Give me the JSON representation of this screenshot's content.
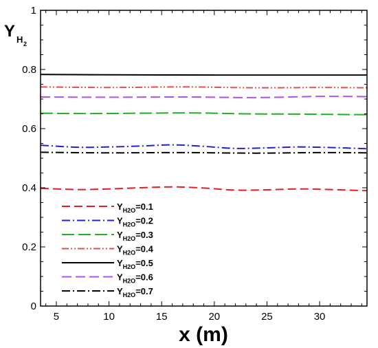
{
  "chart_data": {
    "type": "line",
    "xlabel": "x (m)",
    "ylabel": {
      "main": "Y",
      "sub": "H",
      "sub2": "2"
    },
    "xlim": [
      3.5,
      34.5
    ],
    "ylim": [
      0,
      1
    ],
    "xticks": [
      5,
      10,
      15,
      20,
      25,
      30
    ],
    "yticks": [
      0,
      0.2,
      0.4,
      0.6,
      0.8,
      1
    ],
    "ytick_labels": [
      "0",
      "0.2",
      "0.4",
      "0.6",
      "0.8",
      "1"
    ],
    "grid": false,
    "legend_position": "bottom-left",
    "series": [
      {
        "name": "YH2O=0.1",
        "label_main": "Y",
        "label_sub": "H2O",
        "label_rest": "=0.1",
        "color": "#e02020",
        "dash": "12,6",
        "x": [
          3.5,
          7,
          10,
          13,
          16,
          19,
          22,
          25,
          28,
          31,
          34.5
        ],
        "values": [
          0.398,
          0.394,
          0.396,
          0.4,
          0.403,
          0.399,
          0.392,
          0.393,
          0.396,
          0.394,
          0.39
        ]
      },
      {
        "name": "YH2O=0.2",
        "label_main": "Y",
        "label_sub": "H2O",
        "label_rest": "=0.2",
        "color": "#2020d0",
        "dash": "12,4,2,4",
        "x": [
          3.5,
          7,
          10,
          13,
          16,
          19,
          22,
          25,
          28,
          31,
          34.5
        ],
        "values": [
          0.544,
          0.537,
          0.538,
          0.541,
          0.545,
          0.54,
          0.533,
          0.535,
          0.538,
          0.536,
          0.532
        ]
      },
      {
        "name": "YH2O=0.3",
        "label_main": "Y",
        "label_sub": "H2O",
        "label_rest": "=0.3",
        "color": "#20b020",
        "dash": "18,6",
        "x": [
          3.5,
          8,
          13,
          18,
          23,
          28,
          34.5
        ],
        "values": [
          0.652,
          0.651,
          0.652,
          0.653,
          0.65,
          0.649,
          0.647
        ]
      },
      {
        "name": "YH2O=0.4",
        "label_main": "Y",
        "label_sub": "H2O",
        "label_rest": "=0.4",
        "color": "#e05050",
        "dash": "10,3,2,3,2,3",
        "x": [
          3.5,
          10,
          17,
          24,
          30,
          34.5
        ],
        "values": [
          0.741,
          0.739,
          0.741,
          0.738,
          0.739,
          0.738
        ]
      },
      {
        "name": "YH2O=0.5",
        "label_main": "Y",
        "label_sub": "H2O",
        "label_rest": "=0.5",
        "color": "#000000",
        "dash": "",
        "x": [
          3.5,
          10,
          20,
          28,
          34.5
        ],
        "values": [
          0.783,
          0.782,
          0.781,
          0.781,
          0.781
        ]
      },
      {
        "name": "YH2O=0.6",
        "label_main": "Y",
        "label_sub": "H2O",
        "label_rest": "=0.6",
        "color": "#b050f0",
        "dash": "14,6",
        "x": [
          3.5,
          10,
          17,
          24,
          30,
          34.5
        ],
        "values": [
          0.707,
          0.706,
          0.707,
          0.705,
          0.709,
          0.708
        ]
      },
      {
        "name": "YH2O=0.7",
        "label_main": "Y",
        "label_sub": "H2O",
        "label_rest": "=0.7",
        "color": "#000000",
        "dash": "12,4,2,4",
        "x": [
          3.5,
          10,
          17,
          24,
          30,
          34.5
        ],
        "values": [
          0.52,
          0.518,
          0.519,
          0.517,
          0.519,
          0.518
        ]
      }
    ]
  }
}
